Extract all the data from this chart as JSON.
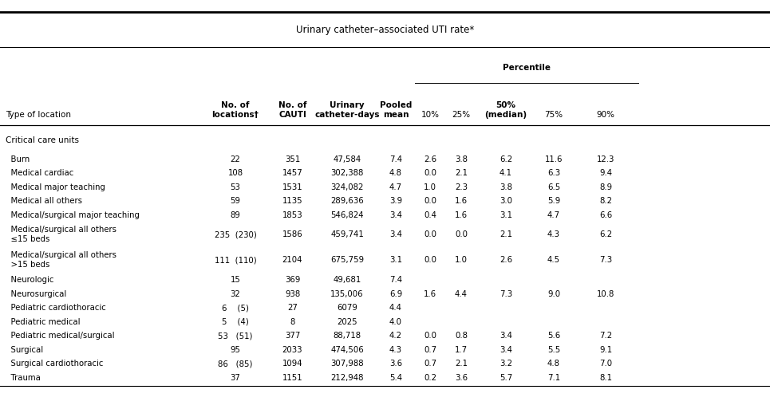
{
  "title": "Urinary catheter–associated UTI rate*",
  "percentile_label": "Percentile",
  "section_header": "Critical care units",
  "col_headers": [
    "Type of location",
    "No. of\nlocations†",
    "No. of\nCAUTI",
    "Urinary\ncatheter-days",
    "Pooled\nmean",
    "10%",
    "25%",
    "50%\n(median)",
    "75%",
    "90%"
  ],
  "rows": [
    {
      "location": "  Burn",
      "locs": "22",
      "cauti": "351",
      "catdays": "47,584",
      "pooled": "7.4",
      "p10": "2.6",
      "p25": "3.8",
      "p50": "6.2",
      "p75": "11.6",
      "p90": "12.3"
    },
    {
      "location": "  Medical cardiac",
      "locs": "108",
      "cauti": "1457",
      "catdays": "302,388",
      "pooled": "4.8",
      "p10": "0.0",
      "p25": "2.1",
      "p50": "4.1",
      "p75": "6.3",
      "p90": "9.4"
    },
    {
      "location": "  Medical major teaching",
      "locs": "53",
      "cauti": "1531",
      "catdays": "324,082",
      "pooled": "4.7",
      "p10": "1.0",
      "p25": "2.3",
      "p50": "3.8",
      "p75": "6.5",
      "p90": "8.9"
    },
    {
      "location": "  Medical all others",
      "locs": "59",
      "cauti": "1135",
      "catdays": "289,636",
      "pooled": "3.9",
      "p10": "0.0",
      "p25": "1.6",
      "p50": "3.0",
      "p75": "5.9",
      "p90": "8.2"
    },
    {
      "location": "  Medical/surgical major teaching",
      "locs": "89",
      "cauti": "1853",
      "catdays": "546,824",
      "pooled": "3.4",
      "p10": "0.4",
      "p25": "1.6",
      "p50": "3.1",
      "p75": "4.7",
      "p90": "6.6"
    },
    {
      "location": "  Medical/surgical all others\n  ≤15 beds",
      "locs": "235  (230)",
      "cauti": "1586",
      "catdays": "459,741",
      "pooled": "3.4",
      "p10": "0.0",
      "p25": "0.0",
      "p50": "2.1",
      "p75": "4.3",
      "p90": "6.2"
    },
    {
      "location": "  Medical/surgical all others\n  >15 beds",
      "locs": "111  (110)",
      "cauti": "2104",
      "catdays": "675,759",
      "pooled": "3.1",
      "p10": "0.0",
      "p25": "1.0",
      "p50": "2.6",
      "p75": "4.5",
      "p90": "7.3"
    },
    {
      "location": "  Neurologic",
      "locs": "15",
      "cauti": "369",
      "catdays": "49,681",
      "pooled": "7.4",
      "p10": "",
      "p25": "",
      "p50": "",
      "p75": "",
      "p90": ""
    },
    {
      "location": "  Neurosurgical",
      "locs": "32",
      "cauti": "938",
      "catdays": "135,006",
      "pooled": "6.9",
      "p10": "1.6",
      "p25": "4.4",
      "p50": "7.3",
      "p75": "9.0",
      "p90": "10.8"
    },
    {
      "location": "  Pediatric cardiothoracic",
      "locs": "6    (5)",
      "cauti": "27",
      "catdays": "6079",
      "pooled": "4.4",
      "p10": "",
      "p25": "",
      "p50": "",
      "p75": "",
      "p90": ""
    },
    {
      "location": "  Pediatric medical",
      "locs": "5    (4)",
      "cauti": "8",
      "catdays": "2025",
      "pooled": "4.0",
      "p10": "",
      "p25": "",
      "p50": "",
      "p75": "",
      "p90": ""
    },
    {
      "location": "  Pediatric medical/surgical",
      "locs": "53   (51)",
      "cauti": "377",
      "catdays": "88,718",
      "pooled": "4.2",
      "p10": "0.0",
      "p25": "0.8",
      "p50": "3.4",
      "p75": "5.6",
      "p90": "7.2"
    },
    {
      "location": "  Surgical",
      "locs": "95",
      "cauti": "2033",
      "catdays": "474,506",
      "pooled": "4.3",
      "p10": "0.7",
      "p25": "1.7",
      "p50": "3.4",
      "p75": "5.5",
      "p90": "9.1"
    },
    {
      "location": "  Surgical cardiothoracic",
      "locs": "86   (85)",
      "cauti": "1094",
      "catdays": "307,988",
      "pooled": "3.6",
      "p10": "0.7",
      "p25": "2.1",
      "p50": "3.2",
      "p75": "4.8",
      "p90": "7.0"
    },
    {
      "location": "  Trauma",
      "locs": "37",
      "cauti": "1151",
      "catdays": "212,948",
      "pooled": "5.4",
      "p10": "0.2",
      "p25": "3.6",
      "p50": "5.7",
      "p75": "7.1",
      "p90": "8.1"
    }
  ],
  "bg_color": "#ffffff",
  "text_color": "#000000",
  "line_color": "#000000",
  "fs_title": 8.5,
  "fs_header": 7.5,
  "fs_data": 7.3,
  "fs_section": 7.5
}
